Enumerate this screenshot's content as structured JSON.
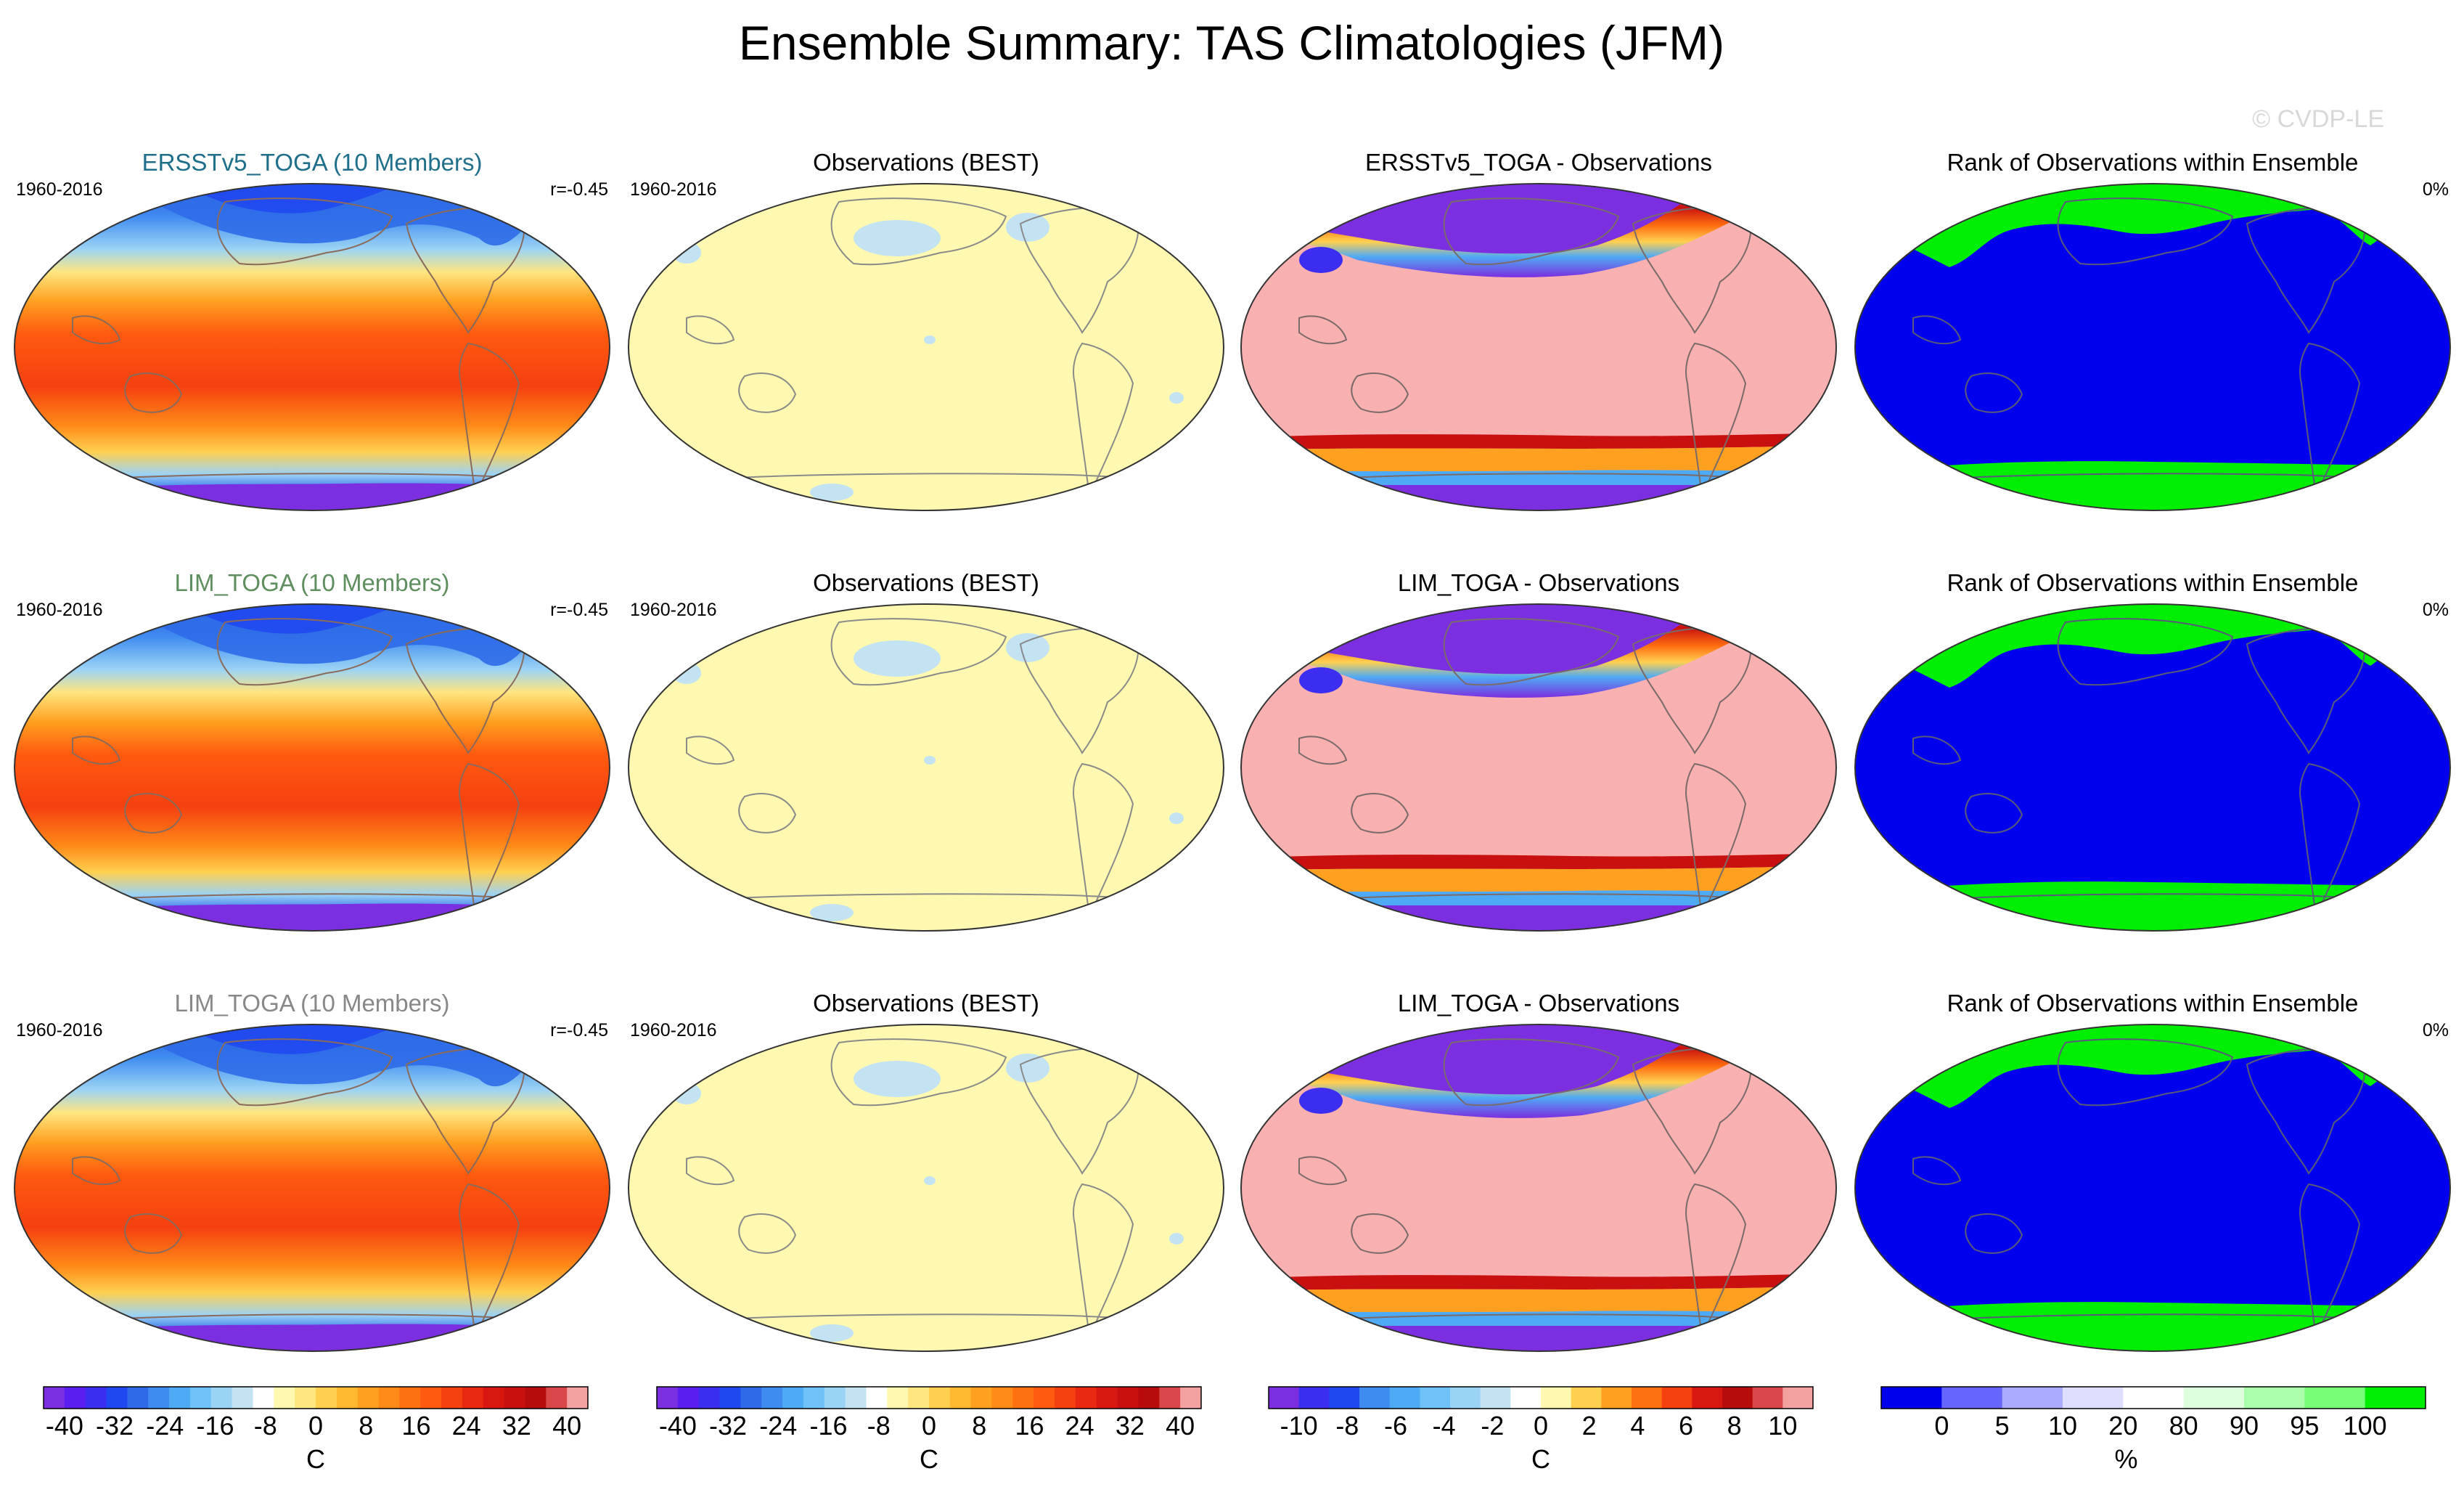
{
  "title": "Ensemble Summary: TAS Climatologies (JFM)",
  "watermark": "© CVDP-LE",
  "rows": [
    {
      "panels": [
        {
          "type": "climatology",
          "title": "ERSSTv5_TOGA (10 Members)",
          "title_color": "#1f6f8b",
          "left_label": "1960-2016",
          "right_label": "r=-0.45"
        },
        {
          "type": "observation",
          "title": "Observations (BEST)",
          "title_color": "#000000",
          "left_label": "1960-2016",
          "right_label": ""
        },
        {
          "type": "difference",
          "title": "ERSSTv5_TOGA - Observations",
          "title_color": "#000000",
          "left_label": "",
          "right_label": ""
        },
        {
          "type": "rank",
          "title": "Rank of Observations within Ensemble",
          "title_color": "#000000",
          "left_label": "",
          "right_label": "0%"
        }
      ]
    },
    {
      "panels": [
        {
          "type": "climatology",
          "title": "LIM_TOGA (10 Members)",
          "title_color": "#5f8f5f",
          "left_label": "1960-2016",
          "right_label": "r=-0.45"
        },
        {
          "type": "observation",
          "title": "Observations (BEST)",
          "title_color": "#000000",
          "left_label": "1960-2016",
          "right_label": ""
        },
        {
          "type": "difference",
          "title": "LIM_TOGA - Observations",
          "title_color": "#000000",
          "left_label": "",
          "right_label": ""
        },
        {
          "type": "rank",
          "title": "Rank of Observations within Ensemble",
          "title_color": "#000000",
          "left_label": "",
          "right_label": "0%"
        }
      ]
    },
    {
      "panels": [
        {
          "type": "climatology",
          "title": "LIM_TOGA (10 Members)",
          "title_color": "#888888",
          "left_label": "1960-2016",
          "right_label": "r=-0.45"
        },
        {
          "type": "observation",
          "title": "Observations (BEST)",
          "title_color": "#000000",
          "left_label": "1960-2016",
          "right_label": ""
        },
        {
          "type": "difference",
          "title": "LIM_TOGA - Observations",
          "title_color": "#000000",
          "left_label": "",
          "right_label": ""
        },
        {
          "type": "rank",
          "title": "Rank of Observations within Ensemble",
          "title_color": "#000000",
          "left_label": "",
          "right_label": "0%"
        }
      ]
    }
  ],
  "colorbars": [
    {
      "units": "C",
      "ticks": [
        "-40",
        "-32",
        "-24",
        "-16",
        "-8",
        "0",
        "8",
        "16",
        "24",
        "32",
        "40"
      ],
      "colors": [
        "#7b2fe0",
        "#5a1ef0",
        "#3b2ef0",
        "#2048f0",
        "#2f6be8",
        "#3f8cf0",
        "#4faaf5",
        "#6fc2f8",
        "#9bd3f5",
        "#c3e3f2",
        "#ffffff",
        "#fff8b0",
        "#ffe680",
        "#ffd050",
        "#ffb830",
        "#ffa020",
        "#ff8a18",
        "#ff7010",
        "#ff5a10",
        "#f54010",
        "#e82810",
        "#d81810",
        "#c81010",
        "#b80c0c",
        "#d84848",
        "#f3a0a0"
      ]
    },
    {
      "units": "C",
      "ticks": [
        "-40",
        "-32",
        "-24",
        "-16",
        "-8",
        "0",
        "8",
        "16",
        "24",
        "32",
        "40"
      ],
      "colors": [
        "#7b2fe0",
        "#5a1ef0",
        "#3b2ef0",
        "#2048f0",
        "#2f6be8",
        "#3f8cf0",
        "#4faaf5",
        "#6fc2f8",
        "#9bd3f5",
        "#c3e3f2",
        "#ffffff",
        "#fff8b0",
        "#ffe680",
        "#ffd050",
        "#ffb830",
        "#ffa020",
        "#ff8a18",
        "#ff7010",
        "#ff5a10",
        "#f54010",
        "#e82810",
        "#d81810",
        "#c81010",
        "#b80c0c",
        "#d84848",
        "#f3a0a0"
      ]
    },
    {
      "units": "C",
      "ticks": [
        "-10",
        "-8",
        "-6",
        "-4",
        "-2",
        "0",
        "2",
        "4",
        "6",
        "8",
        "10"
      ],
      "colors": [
        "#7b2fe0",
        "#3b2ef0",
        "#2048f0",
        "#3f8cf0",
        "#4faaf5",
        "#6fc2f8",
        "#9bd3f5",
        "#c3e3f2",
        "#ffffff",
        "#fff8b0",
        "#ffd050",
        "#ffa020",
        "#ff7010",
        "#f54010",
        "#d81810",
        "#b80c0c",
        "#d84848",
        "#f3a0a0"
      ]
    },
    {
      "units": "%",
      "ticks": [
        "0",
        "5",
        "10",
        "20",
        "80",
        "90",
        "95",
        "100"
      ],
      "colors": [
        "#0000ee",
        "#6666ff",
        "#aaaaff",
        "#ddddff",
        "#ffffff",
        "#ddffdd",
        "#aaffaa",
        "#77ff77",
        "#00ee00"
      ]
    }
  ],
  "chart_data": {
    "type": "heatmap",
    "title": "Ensemble Summary: TAS Climatologies (JFM)",
    "panels": [
      {
        "row": 0,
        "col": 0,
        "title": "ERSSTv5_TOGA (10 Members)",
        "period": "1960-2016",
        "pattern_correlation": -0.45,
        "units": "C",
        "range": [
          -40,
          40
        ]
      },
      {
        "row": 0,
        "col": 1,
        "title": "Observations (BEST)",
        "period": "1960-2016",
        "units": "C",
        "range": [
          -40,
          40
        ]
      },
      {
        "row": 0,
        "col": 2,
        "title": "ERSSTv5_TOGA - Observations",
        "units": "C",
        "range": [
          -10,
          10
        ]
      },
      {
        "row": 0,
        "col": 3,
        "title": "Rank of Observations within Ensemble",
        "percent_label": "0%",
        "units": "%",
        "range": [
          0,
          100
        ]
      },
      {
        "row": 1,
        "col": 0,
        "title": "LIM_TOGA (10 Members)",
        "period": "1960-2016",
        "pattern_correlation": -0.45,
        "units": "C",
        "range": [
          -40,
          40
        ]
      },
      {
        "row": 1,
        "col": 1,
        "title": "Observations (BEST)",
        "period": "1960-2016",
        "units": "C",
        "range": [
          -40,
          40
        ]
      },
      {
        "row": 1,
        "col": 2,
        "title": "LIM_TOGA - Observations",
        "units": "C",
        "range": [
          -10,
          10
        ]
      },
      {
        "row": 1,
        "col": 3,
        "title": "Rank of Observations within Ensemble",
        "percent_label": "0%",
        "units": "%",
        "range": [
          0,
          100
        ]
      },
      {
        "row": 2,
        "col": 0,
        "title": "LIM_TOGA (10 Members)",
        "period": "1960-2016",
        "pattern_correlation": -0.45,
        "units": "C",
        "range": [
          -40,
          40
        ]
      },
      {
        "row": 2,
        "col": 1,
        "title": "Observations (BEST)",
        "period": "1960-2016",
        "units": "C",
        "range": [
          -40,
          40
        ]
      },
      {
        "row": 2,
        "col": 2,
        "title": "LIM_TOGA - Observations",
        "units": "C",
        "range": [
          -10,
          10
        ]
      },
      {
        "row": 2,
        "col": 3,
        "title": "Rank of Observations within Ensemble",
        "percent_label": "0%",
        "units": "%",
        "range": [
          0,
          100
        ]
      }
    ],
    "colorbar_ticks": [
      [
        "-40",
        "-32",
        "-24",
        "-16",
        "-8",
        "0",
        "8",
        "16",
        "24",
        "32",
        "40"
      ],
      [
        "-40",
        "-32",
        "-24",
        "-16",
        "-8",
        "0",
        "8",
        "16",
        "24",
        "32",
        "40"
      ],
      [
        "-10",
        "-8",
        "-6",
        "-4",
        "-2",
        "0",
        "2",
        "4",
        "6",
        "8",
        "10"
      ],
      [
        "0",
        "5",
        "10",
        "20",
        "80",
        "90",
        "95",
        "100"
      ]
    ]
  }
}
